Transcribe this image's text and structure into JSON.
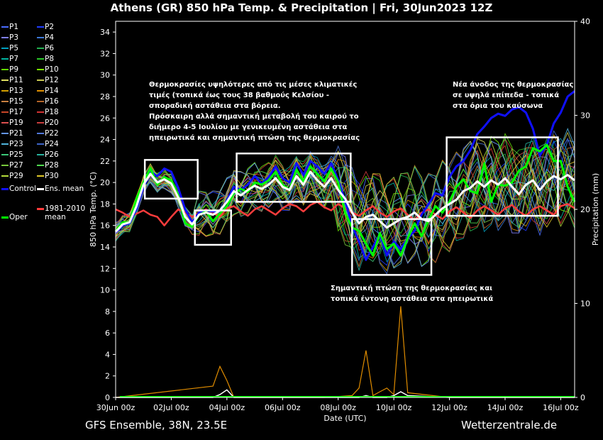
{
  "title": "Athens  (GR)  850 hPa Temp. & Precipitation | Fri, 30Jun2023 12Z",
  "footer": {
    "left": "GFS Ensemble, 38N, 23.5E",
    "right": "Wetterzentrale.de"
  },
  "legend": {
    "members": [
      {
        "label": "P1",
        "color": "#4a6cff"
      },
      {
        "label": "P2",
        "color": "#1e3cff"
      },
      {
        "label": "P3",
        "color": "#7f7fff"
      },
      {
        "label": "P4",
        "color": "#3c78d8"
      },
      {
        "label": "P5",
        "color": "#00a0c0"
      },
      {
        "label": "P6",
        "color": "#22b050"
      },
      {
        "label": "P7",
        "color": "#00b4a0"
      },
      {
        "label": "P8",
        "color": "#28c828"
      },
      {
        "label": "P9",
        "color": "#64dc00"
      },
      {
        "label": "P10",
        "color": "#7cfc00"
      },
      {
        "label": "P11",
        "color": "#e0e060"
      },
      {
        "label": "P12",
        "color": "#c8c850"
      },
      {
        "label": "P13",
        "color": "#d4a000"
      },
      {
        "label": "P14",
        "color": "#e09000"
      },
      {
        "label": "P15",
        "color": "#c88040"
      },
      {
        "label": "P16",
        "color": "#b46428"
      },
      {
        "label": "P17",
        "color": "#c84628"
      },
      {
        "label": "P18",
        "color": "#d23232"
      },
      {
        "label": "P19",
        "color": "#dc5050"
      },
      {
        "label": "P20",
        "color": "#c83c3c"
      },
      {
        "label": "P21",
        "color": "#6496ff"
      },
      {
        "label": "P22",
        "color": "#5078dc"
      },
      {
        "label": "P23",
        "color": "#50b4dc"
      },
      {
        "label": "P24",
        "color": "#3c64c8"
      },
      {
        "label": "P25",
        "color": "#3cc878"
      },
      {
        "label": "P26",
        "color": "#28b4a0"
      },
      {
        "label": "P27",
        "color": "#78c83c"
      },
      {
        "label": "P28",
        "color": "#50dc50"
      },
      {
        "label": "P29",
        "color": "#b4dc3c"
      },
      {
        "label": "P30",
        "color": "#e0c828"
      }
    ],
    "control": {
      "label": "Control",
      "color": "#1010ff"
    },
    "ens_mean": {
      "label": "Ens. mean",
      "color": "#ffffff"
    },
    "climate": {
      "label_line1": "1981-2010",
      "label_line2": "mean",
      "color": "#ff3c3c"
    },
    "oper": {
      "label": "Oper",
      "color": "#00ff00"
    }
  },
  "annotations": {
    "left": [
      "Θερμοκρασίες υψηλότερες από τις μέσες κλιματικές",
      "τιμές (τοπικά έως τους 38 βαθμούς Κελσίου -",
      "σποραδική αστάθεια στα βόρεια.",
      "Πρόσκαιρη αλλά σημαντική μεταβολή του καιρού το",
      "διήμερο 4-5 Ιουλίου με γενικευμένη αστάθεια στα",
      "ηπειρωτικά και σημαντική πτώση της θερμοκρασίας"
    ],
    "right": [
      "Νέα άνοδος της θερμοκρασίας",
      "σε υψηλά επίπεδα - τοπικά",
      "στα όρια του καύσωνα"
    ],
    "bottom": [
      "Σημαντική πτώση της θερμοκρασίας και",
      "τοπικά έντονη αστάθεια στα ηπειρωτικά"
    ]
  },
  "chart_data": {
    "type": "line",
    "xlabel": "Date (UTC)",
    "ylabel": "850 hPa Temp. (°C)",
    "y2label": "Precipitation (mm)",
    "xlim": [
      0,
      16.5
    ],
    "ylim": [
      0,
      35
    ],
    "y2lim": [
      0,
      40
    ],
    "x_unit": "days after 30Jun2023 00z",
    "x_ticks": [
      {
        "x": 0,
        "label": "30Jun 00z"
      },
      {
        "x": 2,
        "label": "02Jul 00z"
      },
      {
        "x": 4,
        "label": "04Jul 00z"
      },
      {
        "x": 6,
        "label": "06Jul 00z"
      },
      {
        "x": 8,
        "label": "08Jul 00z"
      },
      {
        "x": 10,
        "label": "10Jul 00z"
      },
      {
        "x": 12,
        "label": "12Jul 00z"
      },
      {
        "x": 14,
        "label": "14Jul 00z"
      },
      {
        "x": 16,
        "label": "16Jul 00z"
      }
    ],
    "y_ticks": [
      0,
      2,
      4,
      6,
      8,
      10,
      12,
      14,
      16,
      18,
      20,
      22,
      24,
      26,
      28,
      30,
      32,
      34
    ],
    "y2_ticks": [
      0,
      10,
      20,
      30,
      40
    ],
    "grid": false,
    "series": [
      {
        "name": "Control",
        "color": "#1010ff",
        "width": 3,
        "x": [
          0,
          0.25,
          0.5,
          0.75,
          1,
          1.25,
          1.5,
          1.75,
          2,
          2.25,
          2.5,
          2.75,
          3,
          3.25,
          3.5,
          3.75,
          4,
          4.25,
          4.5,
          4.75,
          5,
          5.25,
          5.5,
          5.75,
          6,
          6.25,
          6.5,
          6.75,
          7,
          7.25,
          7.5,
          7.75,
          8,
          8.25,
          8.5,
          8.75,
          9,
          9.25,
          9.5,
          9.75,
          10,
          10.25,
          10.5,
          10.75,
          11,
          11.25,
          11.5,
          11.75,
          12,
          12.25,
          12.5,
          12.75,
          13,
          13.25,
          13.5,
          13.75,
          14,
          14.25,
          14.5,
          14.75,
          15,
          15.25,
          15.5,
          15.75,
          16,
          16.25,
          16.5
        ],
        "y": [
          15.3,
          16.0,
          16.2,
          17.5,
          19.5,
          21.0,
          20.6,
          21.3,
          21.0,
          19.5,
          17.5,
          16.3,
          17.2,
          17.4,
          17.3,
          17.3,
          18.3,
          19.6,
          19.3,
          19.8,
          20.6,
          19.9,
          20.5,
          21.5,
          20.4,
          20.0,
          21.8,
          20.7,
          22.0,
          21.5,
          20.8,
          21.8,
          20.2,
          18.3,
          16.0,
          14.5,
          12.8,
          14.0,
          15.2,
          13.2,
          14.5,
          13.8,
          14.8,
          15.5,
          17.0,
          18.0,
          19.0,
          18.8,
          20.5,
          21.5,
          22.0,
          23.0,
          24.5,
          25.2,
          26.0,
          26.4,
          26.2,
          26.8,
          27.0,
          26.5,
          25.0,
          22.5,
          23.5,
          25.5,
          26.5,
          28.0,
          28.5
        ]
      },
      {
        "name": "Oper",
        "color": "#00ff00",
        "width": 3,
        "x": [
          0,
          0.25,
          0.5,
          0.75,
          1,
          1.25,
          1.5,
          1.75,
          2,
          2.25,
          2.5,
          2.75,
          3,
          3.25,
          3.5,
          3.75,
          4,
          4.25,
          4.5,
          4.75,
          5,
          5.25,
          5.5,
          5.75,
          6,
          6.25,
          6.5,
          6.75,
          7,
          7.25,
          7.5,
          7.75,
          8,
          8.25,
          8.5,
          8.75,
          9,
          9.25,
          9.5,
          9.75,
          10,
          10.25,
          10.5,
          10.75,
          11,
          11.25,
          11.5,
          11.75,
          12,
          12.25,
          12.5,
          12.75,
          13,
          13.25,
          13.5,
          13.75,
          14,
          14.25,
          14.5,
          14.75,
          15,
          15.25,
          15.5,
          15.75,
          16,
          16.25,
          16.5
        ],
        "y": [
          15.5,
          16.3,
          16.3,
          18.5,
          20.0,
          21.3,
          19.8,
          20.5,
          20.2,
          18.8,
          16.2,
          15.9,
          17.0,
          17.3,
          16.4,
          17.1,
          17.8,
          19.0,
          19.4,
          19.1,
          20.0,
          19.8,
          20.2,
          21.0,
          19.8,
          19.3,
          21.2,
          20.1,
          21.5,
          20.8,
          20.1,
          21.3,
          20.0,
          17.2,
          15.8,
          15.5,
          14.3,
          13.2,
          15.3,
          13.8,
          14.3,
          13.2,
          14.8,
          16.2,
          15.0,
          16.5,
          17.8,
          17.2,
          18.2,
          19.6,
          20.3,
          19.2,
          19.0,
          21.8,
          18.2,
          19.8,
          19.7,
          20.0,
          21.1,
          21.5,
          23.2,
          22.9,
          23.5,
          22.0,
          22.0,
          19.6,
          18.2
        ]
      },
      {
        "name": "Ens. mean",
        "color": "#ffffff",
        "width": 3,
        "x": [
          0,
          0.25,
          0.5,
          0.75,
          1,
          1.25,
          1.5,
          1.75,
          2,
          2.25,
          2.5,
          2.75,
          3,
          3.25,
          3.5,
          3.75,
          4,
          4.25,
          4.5,
          4.75,
          5,
          5.25,
          5.5,
          5.75,
          6,
          6.25,
          6.5,
          6.75,
          7,
          7.25,
          7.5,
          7.75,
          8,
          8.25,
          8.5,
          8.75,
          9,
          9.25,
          9.5,
          9.75,
          10,
          10.25,
          10.5,
          10.75,
          11,
          11.25,
          11.5,
          11.75,
          12,
          12.25,
          12.5,
          12.75,
          13,
          13.25,
          13.5,
          13.75,
          14,
          14.25,
          14.5,
          14.75,
          15,
          15.25,
          15.5,
          15.75,
          16,
          16.25,
          16.5
        ],
        "y": [
          15.4,
          16.1,
          16.3,
          17.8,
          19.8,
          20.8,
          20.0,
          20.3,
          19.9,
          18.6,
          16.8,
          16.1,
          17.0,
          17.2,
          17.0,
          17.4,
          18.2,
          19.2,
          18.8,
          19.3,
          19.7,
          19.4,
          19.8,
          20.4,
          19.6,
          19.3,
          20.6,
          19.8,
          21.0,
          20.2,
          19.6,
          20.4,
          19.3,
          18.5,
          17.2,
          16.2,
          16.8,
          17.0,
          16.4,
          15.8,
          16.2,
          16.6,
          16.8,
          17.2,
          16.6,
          16.4,
          17.0,
          17.6,
          18.0,
          18.4,
          19.2,
          19.5,
          20.1,
          19.6,
          20.2,
          19.8,
          20.4,
          19.6,
          18.9,
          19.8,
          20.2,
          19.3,
          20.1,
          20.6,
          20.3,
          20.7,
          20.2
        ]
      },
      {
        "name": "1981-2010 mean",
        "color": "#ff3c3c",
        "width": 2.5,
        "x": [
          0,
          0.25,
          0.5,
          0.75,
          1,
          1.25,
          1.5,
          1.75,
          2,
          2.25,
          2.5,
          2.75,
          3,
          3.25,
          3.5,
          3.75,
          4,
          4.25,
          4.5,
          4.75,
          5,
          5.25,
          5.5,
          5.75,
          6,
          6.25,
          6.5,
          6.75,
          7,
          7.25,
          7.5,
          7.75,
          8,
          8.25,
          8.5,
          8.75,
          9,
          9.25,
          9.5,
          9.75,
          10,
          10.25,
          10.5,
          10.75,
          11,
          11.25,
          11.5,
          11.75,
          12,
          12.25,
          12.5,
          12.75,
          13,
          13.25,
          13.5,
          13.75,
          14,
          14.25,
          14.5,
          14.75,
          15,
          15.25,
          15.5,
          15.75,
          16,
          16.25,
          16.5
        ],
        "y": [
          17.5,
          17.2,
          16.8,
          17.1,
          17.4,
          17.0,
          16.8,
          16.0,
          16.8,
          17.5,
          17.2,
          16.8,
          17.2,
          17.5,
          17.2,
          16.8,
          17.6,
          17.8,
          17.3,
          16.9,
          17.5,
          17.8,
          17.4,
          17.0,
          17.6,
          18.0,
          17.8,
          17.3,
          17.9,
          18.2,
          17.7,
          17.4,
          18.0,
          17.6,
          17.2,
          16.9,
          17.4,
          17.8,
          17.2,
          16.8,
          17.3,
          17.6,
          17.0,
          16.5,
          17.2,
          17.5,
          17.0,
          16.6,
          17.3,
          17.7,
          17.2,
          16.7,
          17.4,
          17.8,
          17.4,
          17.0,
          17.6,
          17.9,
          17.3,
          16.9,
          17.5,
          17.8,
          17.4,
          17.0,
          17.8,
          18.0,
          17.6
        ]
      }
    ],
    "precipitation": {
      "unit": "mm",
      "x": [
        0,
        3.5,
        3.75,
        4,
        4.25,
        7.5,
        8.5,
        8.75,
        9,
        9.25,
        9.5,
        9.75,
        10,
        10.25,
        10.5,
        12,
        16.5
      ],
      "max": [
        0,
        1.2,
        3.3,
        1.8,
        0,
        0,
        0.2,
        1.0,
        5.0,
        0.2,
        0.6,
        1.0,
        0.3,
        9.7,
        0.5,
        0,
        0
      ],
      "mean": [
        0,
        0,
        0.3,
        0.8,
        0,
        0,
        0,
        0,
        0.2,
        0,
        0,
        0,
        0.2,
        0.6,
        0.2,
        0,
        0
      ]
    }
  }
}
